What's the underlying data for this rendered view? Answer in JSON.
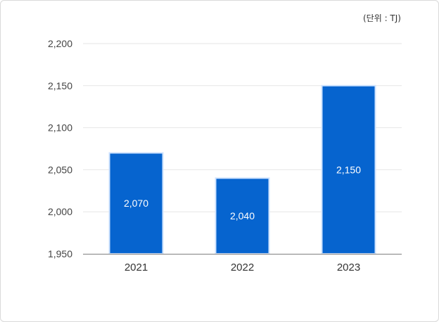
{
  "unit_label": "(단위 : TJ)",
  "chart_data": {
    "type": "bar",
    "categories": [
      "2021",
      "2022",
      "2023"
    ],
    "values": [
      2070,
      2040,
      2150
    ],
    "data_labels": [
      "2,070",
      "2,040",
      "2,150"
    ],
    "ylim": [
      1950,
      2200
    ],
    "yticks": [
      1950,
      2000,
      2050,
      2100,
      2150,
      2200
    ],
    "ytick_labels": [
      "1,950",
      "2,000",
      "2,050",
      "2,100",
      "2,150",
      "2,200"
    ],
    "grid": true,
    "bar_color": "#0664cf",
    "bar_edge_color": "#cfe3ff"
  }
}
